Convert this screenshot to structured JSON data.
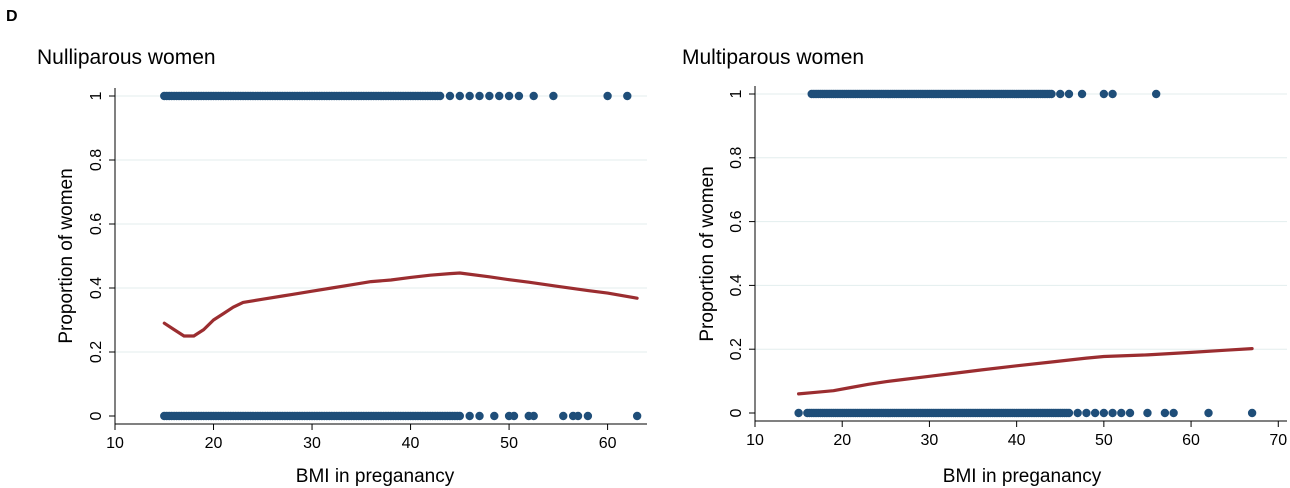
{
  "panel_letter": "D",
  "colors": {
    "points": "#1f4e79",
    "fit_line": "#9b2d30",
    "grid": "#e3eeee"
  },
  "chart_data": [
    {
      "type": "scatter",
      "title": "Nulliparous women",
      "xlabel": "BMI in preganancy",
      "ylabel": "Proportion of women",
      "xlim": [
        10,
        64
      ],
      "ylim": [
        0,
        1
      ],
      "xticks": [
        "10",
        "20",
        "30",
        "40",
        "50",
        "60"
      ],
      "yticks": [
        "0",
        "0.2",
        "0.4",
        "0.6",
        "0.8",
        "1"
      ],
      "xtick_values": [
        10,
        20,
        30,
        40,
        50,
        60
      ],
      "ytick_values": [
        0,
        0.2,
        0.4,
        0.6,
        0.8,
        1
      ],
      "grid": true,
      "points_y1_range": [
        15,
        43
      ],
      "points_y1_extra": [
        44,
        45,
        46,
        47,
        48,
        49,
        50,
        51,
        52.5,
        54.5,
        60,
        62
      ],
      "points_y0_range": [
        15,
        45
      ],
      "points_y0_extra": [
        46,
        47,
        48.5,
        50,
        50.5,
        52,
        52.5,
        55.5,
        56.5,
        57,
        58,
        63
      ],
      "series": [
        {
          "x": [
            15,
            16,
            17,
            18,
            19,
            20,
            21,
            22,
            23,
            25,
            27,
            28,
            30,
            32,
            34,
            36,
            38,
            40,
            42,
            44,
            45,
            48,
            50,
            52,
            55,
            58,
            60,
            63
          ],
          "y": [
            0.29,
            0.27,
            0.25,
            0.25,
            0.27,
            0.3,
            0.32,
            0.34,
            0.355,
            0.365,
            0.375,
            0.38,
            0.39,
            0.4,
            0.41,
            0.42,
            0.425,
            0.433,
            0.44,
            0.445,
            0.447,
            0.435,
            0.426,
            0.418,
            0.405,
            0.392,
            0.384,
            0.368
          ]
        }
      ]
    },
    {
      "type": "scatter",
      "title": "Multiparous women",
      "xlabel": "BMI in preganancy",
      "ylabel": "Proportion of women",
      "xlim": [
        10,
        71
      ],
      "ylim": [
        0,
        1
      ],
      "xticks": [
        "10",
        "20",
        "30",
        "40",
        "50",
        "60",
        "70"
      ],
      "yticks": [
        "0",
        "0.2",
        "0.4",
        "0.6",
        "0.8",
        "1"
      ],
      "xtick_values": [
        10,
        20,
        30,
        40,
        50,
        60,
        70
      ],
      "ytick_values": [
        0,
        0.2,
        0.4,
        0.6,
        0.8,
        1
      ],
      "grid": true,
      "points_y1_range": [
        16.5,
        44
      ],
      "points_y1_extra": [
        45,
        46,
        47.5,
        50,
        51,
        56
      ],
      "points_y0_range": [
        16,
        46
      ],
      "points_y0_extra": [
        15,
        47,
        48,
        49,
        50,
        51,
        52,
        53,
        55,
        57,
        58,
        62,
        67
      ],
      "series": [
        {
          "x": [
            15,
            17,
            19,
            21,
            23,
            25,
            27,
            30,
            33,
            36,
            40,
            44,
            48,
            50,
            55,
            60,
            64,
            67
          ],
          "y": [
            0.06,
            0.065,
            0.07,
            0.08,
            0.09,
            0.098,
            0.105,
            0.115,
            0.125,
            0.135,
            0.148,
            0.16,
            0.172,
            0.177,
            0.182,
            0.19,
            0.197,
            0.202
          ]
        }
      ]
    }
  ]
}
